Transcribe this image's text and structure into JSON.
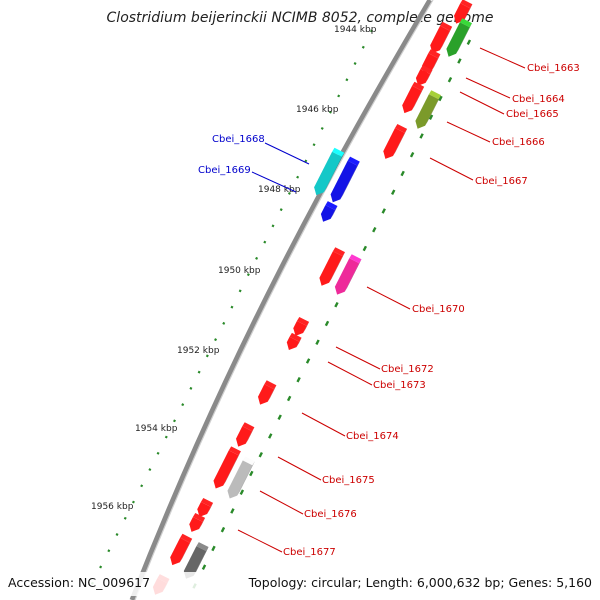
{
  "title": "Clostridium beijerinckii NCIMB 8052, complete genome",
  "footer": {
    "accession": "Accession: NC_009617",
    "topology": "Topology: circular; Length: 6,000,632 bp; Genes: 5,160"
  },
  "ticks": [
    "1944 kbp",
    "1946 kbp",
    "1948 kbp",
    "1950 kbp",
    "1952 kbp",
    "1954 kbp",
    "1956 kbp"
  ],
  "colors": {
    "red": "#ff1a1a",
    "green": "#2aa12a",
    "olive": "#7b9a2a",
    "cyan": "#14c8c8",
    "blue": "#1414e6",
    "magenta": "#ee2a9a",
    "grey": "#bbbbbb",
    "darkgrey": "#666666",
    "label_red": "#cc0000",
    "label_blue": "#0000cc"
  },
  "labels": [
    {
      "name": "Cbei_1663",
      "color": "red"
    },
    {
      "name": "Cbei_1664",
      "color": "red"
    },
    {
      "name": "Cbei_1665",
      "color": "red"
    },
    {
      "name": "Cbei_1666",
      "color": "red"
    },
    {
      "name": "Cbei_1667",
      "color": "red"
    },
    {
      "name": "Cbei_1668",
      "color": "blue"
    },
    {
      "name": "Cbei_1669",
      "color": "blue"
    },
    {
      "name": "Cbei_1670",
      "color": "red"
    },
    {
      "name": "Cbei_1672",
      "color": "red"
    },
    {
      "name": "Cbei_1673",
      "color": "red"
    },
    {
      "name": "Cbei_1674",
      "color": "red"
    },
    {
      "name": "Cbei_1675",
      "color": "red"
    },
    {
      "name": "Cbei_1676",
      "color": "red"
    },
    {
      "name": "Cbei_1677",
      "color": "red"
    }
  ]
}
